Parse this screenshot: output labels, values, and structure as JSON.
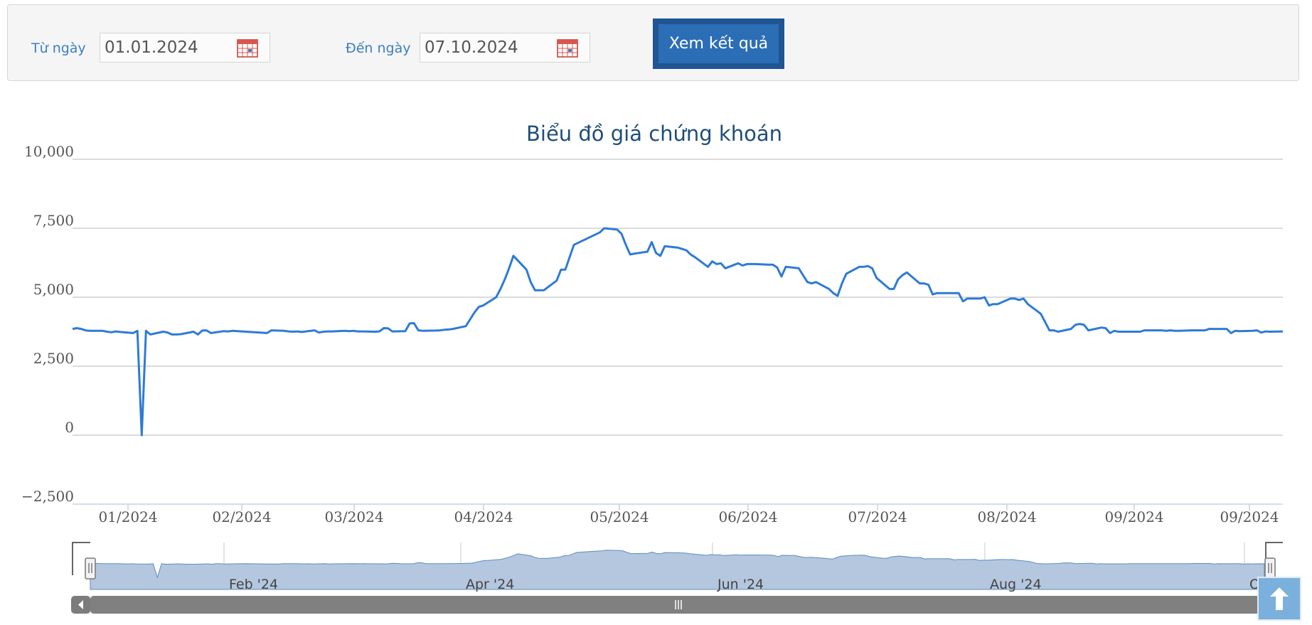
{
  "filter": {
    "from_label": "Từ ngày",
    "from_value": "01.01.2024",
    "to_label": "Đến ngày",
    "to_value": "07.10.2024",
    "submit_label": "Xem kết quả"
  },
  "icons": {
    "calendar": "calendar-icon",
    "scroll_top": "arrow-up-icon",
    "scroll_left": "chevron-left-icon",
    "scroll_grip": "grip-icon"
  },
  "colors": {
    "line": "#2e7bd6",
    "navigator_fill": "#b5c7de",
    "button": "#2c6eb5"
  },
  "chart_data": {
    "type": "line",
    "title": "Biểu đồ giá chứng khoán",
    "xlabel": "",
    "ylabel": "",
    "ylim": [
      -2500,
      10000
    ],
    "yticks": [
      "−2,500",
      "0",
      "2,500",
      "5,000",
      "7,500",
      "10,000"
    ],
    "xticks": [
      "01/2024",
      "02/2024",
      "03/2024",
      "04/2024",
      "05/2024",
      "06/2024",
      "07/2024",
      "08/2024",
      "09/2024",
      "09/2024"
    ],
    "navigator_ticks": [
      "Feb '24",
      "Apr '24",
      "Jun '24",
      "Aug '24",
      "O"
    ],
    "grid": true,
    "legend": "none",
    "x": [
      "2024-01-01",
      "2024-01-02",
      "2024-01-03",
      "2024-01-04",
      "2024-01-05",
      "2024-01-08",
      "2024-01-09",
      "2024-01-10",
      "2024-01-11",
      "2024-01-12",
      "2024-01-15",
      "2024-01-16",
      "2024-01-17",
      "2024-01-18",
      "2024-01-19",
      "2024-01-22",
      "2024-01-23",
      "2024-01-24",
      "2024-01-25",
      "2024-01-26",
      "2024-01-29",
      "2024-01-30",
      "2024-01-31",
      "2024-02-01",
      "2024-02-02",
      "2024-02-05",
      "2024-02-06",
      "2024-02-07",
      "2024-02-15",
      "2024-02-16",
      "2024-02-19",
      "2024-02-20",
      "2024-02-21",
      "2024-02-22",
      "2024-02-23",
      "2024-02-26",
      "2024-02-27",
      "2024-02-28",
      "2024-02-29",
      "2024-03-01",
      "2024-03-04",
      "2024-03-05",
      "2024-03-06",
      "2024-03-07",
      "2024-03-08",
      "2024-03-11",
      "2024-03-12",
      "2024-03-13",
      "2024-03-14",
      "2024-03-15",
      "2024-03-18",
      "2024-03-19",
      "2024-03-20",
      "2024-03-21",
      "2024-03-22",
      "2024-03-25",
      "2024-03-26",
      "2024-03-27",
      "2024-03-28",
      "2024-03-29",
      "2024-04-01",
      "2024-04-02",
      "2024-04-03",
      "2024-04-04",
      "2024-04-05",
      "2024-04-08",
      "2024-04-09",
      "2024-04-10",
      "2024-04-11",
      "2024-04-12",
      "2024-04-15",
      "2024-04-16",
      "2024-04-17",
      "2024-04-19",
      "2024-04-22",
      "2024-04-23",
      "2024-04-24",
      "2024-04-25",
      "2024-04-26",
      "2024-05-02",
      "2024-05-03",
      "2024-05-06",
      "2024-05-07",
      "2024-05-08",
      "2024-05-09",
      "2024-05-10",
      "2024-05-13",
      "2024-05-14",
      "2024-05-15",
      "2024-05-16",
      "2024-05-17",
      "2024-05-20",
      "2024-05-21",
      "2024-05-22",
      "2024-05-23",
      "2024-05-24",
      "2024-05-27",
      "2024-05-28",
      "2024-05-29",
      "2024-05-30",
      "2024-05-31",
      "2024-06-03",
      "2024-06-04",
      "2024-06-05",
      "2024-06-06",
      "2024-06-07",
      "2024-06-10",
      "2024-06-11",
      "2024-06-12",
      "2024-06-13",
      "2024-06-14",
      "2024-06-17",
      "2024-06-18",
      "2024-06-19",
      "2024-06-20",
      "2024-06-21",
      "2024-06-24",
      "2024-06-25",
      "2024-06-26",
      "2024-06-27",
      "2024-06-28",
      "2024-07-01",
      "2024-07-02",
      "2024-07-03",
      "2024-07-04",
      "2024-07-05",
      "2024-07-08",
      "2024-07-09",
      "2024-07-10",
      "2024-07-11",
      "2024-07-12",
      "2024-07-15",
      "2024-07-16",
      "2024-07-17",
      "2024-07-18",
      "2024-07-19",
      "2024-07-22",
      "2024-07-23",
      "2024-07-24",
      "2024-07-25",
      "2024-07-26",
      "2024-07-29",
      "2024-07-30",
      "2024-07-31",
      "2024-08-01",
      "2024-08-02",
      "2024-08-05",
      "2024-08-06",
      "2024-08-07",
      "2024-08-08",
      "2024-08-09",
      "2024-08-12",
      "2024-08-13",
      "2024-08-14",
      "2024-08-15",
      "2024-08-16",
      "2024-08-19",
      "2024-08-20",
      "2024-08-21",
      "2024-08-22",
      "2024-08-23",
      "2024-08-26",
      "2024-08-27",
      "2024-08-28",
      "2024-08-29",
      "2024-08-30",
      "2024-09-04",
      "2024-09-05",
      "2024-09-06",
      "2024-09-09",
      "2024-09-10",
      "2024-09-11",
      "2024-09-12",
      "2024-09-13",
      "2024-09-16",
      "2024-09-17",
      "2024-09-18",
      "2024-09-19",
      "2024-09-20",
      "2024-09-23",
      "2024-09-24",
      "2024-09-25",
      "2024-09-26",
      "2024-09-27",
      "2024-09-30",
      "2024-10-01",
      "2024-10-02",
      "2024-10-03",
      "2024-10-04",
      "2024-10-07"
    ],
    "series": [
      {
        "values": [
          3850,
          3880,
          3850,
          3800,
          3780,
          3780,
          3750,
          3730,
          3760,
          3740,
          3700,
          3780,
          0,
          3780,
          3650,
          3750,
          3720,
          3650,
          3650,
          3660,
          3750,
          3650,
          3790,
          3800,
          3700,
          3770,
          3760,
          3780,
          3700,
          3800,
          3780,
          3760,
          3750,
          3760,
          3740,
          3800,
          3720,
          3750,
          3760,
          3760,
          3780,
          3770,
          3780,
          3760,
          3760,
          3750,
          3760,
          3880,
          3870,
          3760,
          3770,
          4050,
          4060,
          3800,
          3780,
          3790,
          3800,
          3820,
          3830,
          3850,
          3950,
          4200,
          4450,
          4650,
          4700,
          5000,
          5300,
          5650,
          6050,
          6500,
          6000,
          5550,
          5250,
          5250,
          5600,
          6000,
          6000,
          6450,
          6900,
          7350,
          7500,
          7450,
          7300,
          6900,
          6550,
          6580,
          6650,
          7000,
          6600,
          6500,
          6850,
          6800,
          6750,
          6700,
          6550,
          6450,
          6100,
          6300,
          6200,
          6230,
          6050,
          6230,
          6150,
          6200,
          6200,
          6200,
          6180,
          6180,
          6080,
          5750,
          6100,
          6050,
          5800,
          5550,
          5500,
          5550,
          5300,
          5150,
          5050,
          5500,
          5850,
          6100,
          6100,
          6130,
          6050,
          5700,
          5300,
          5300,
          5650,
          5800,
          5900,
          5500,
          5500,
          5450,
          5100,
          5150,
          5150,
          5150,
          5150,
          4850,
          4950,
          4950,
          5000,
          4700,
          4750,
          4750,
          4950,
          4950,
          4900,
          4950,
          4750,
          4400,
          4100,
          3800,
          3800,
          3750,
          3850,
          4000,
          4030,
          4000,
          3800,
          3900,
          3880,
          3700,
          3780,
          3750,
          3750,
          3800,
          3800,
          3800,
          3780,
          3800,
          3780,
          3780,
          3800,
          3800,
          3800,
          3800,
          3850,
          3850,
          3850,
          3700,
          3780,
          3770,
          3780,
          3800,
          3720,
          3760,
          3750,
          3760
        ]
      }
    ]
  }
}
